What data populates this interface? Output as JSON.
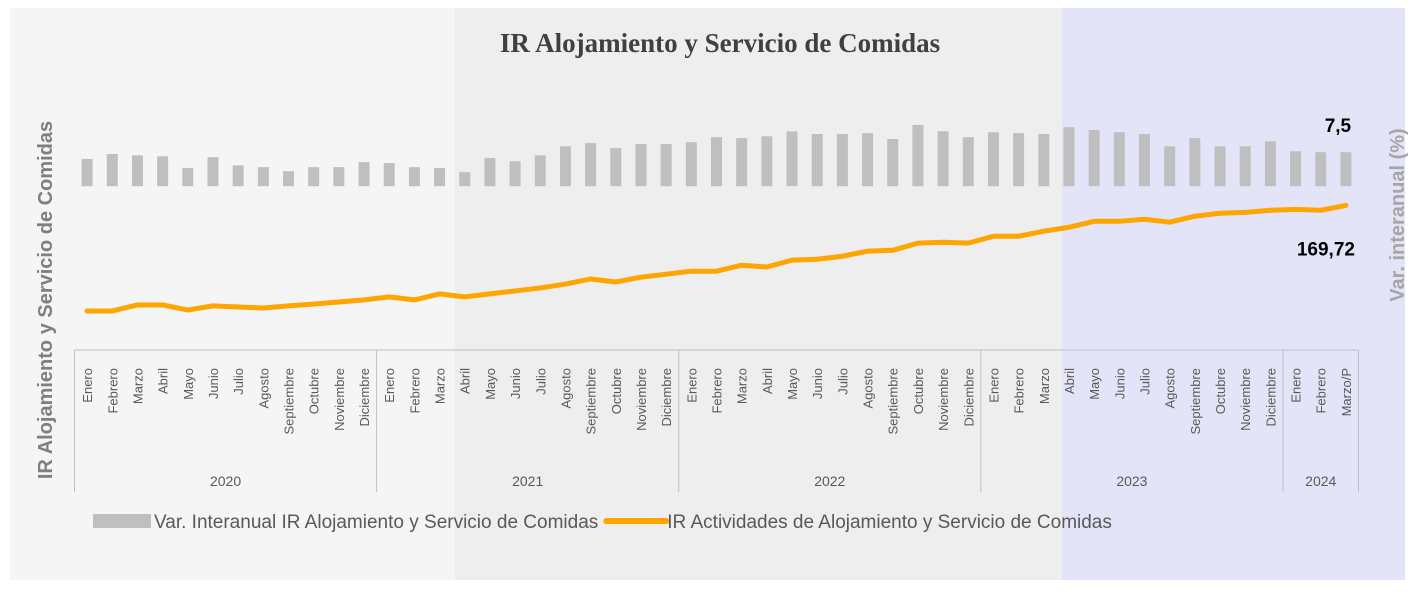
{
  "chart_data": {
    "type": "bar-line",
    "title": "IR Alojamiento y Servicio de Comidas",
    "y_label": "IR Alojamiento y Servicio de Comidas",
    "y2_label": "Var. interanual (%)",
    "groups": [
      {
        "name": "2020",
        "categories": [
          "Enero",
          "Febrero",
          "Marzo",
          "Abril",
          "Mayo",
          "Junio",
          "Julio",
          "Agosto",
          "Septiembre",
          "Octubre",
          "Noviembre",
          "Diciembre"
        ]
      },
      {
        "name": "2021",
        "categories": [
          "Enero",
          "Febrero",
          "Marzo",
          "Abril",
          "Mayo",
          "Junio",
          "Julio",
          "Agosto",
          "Septiembre",
          "Octubre",
          "Noviembre",
          "Diciembre"
        ]
      },
      {
        "name": "2022",
        "categories": [
          "Enero",
          "Febrero",
          "Marzo",
          "Abril",
          "Mayo",
          "Junio",
          "Julio",
          "Agosto",
          "Septiembre",
          "Octubre",
          "Noviembre",
          "Diciembre"
        ]
      },
      {
        "name": "2023",
        "categories": [
          "Enero",
          "Febrero",
          "Marzo",
          "Abril",
          "Mayo",
          "Junio",
          "Julio",
          "Agosto",
          "Septiembre",
          "Octubre",
          "Noviembre",
          "Diciembre"
        ]
      },
      {
        "name": "2024",
        "categories": [
          "Enero",
          "Febrero",
          "Marzo/P"
        ]
      }
    ],
    "series": [
      {
        "name": "Var. Interanual IR Alojamiento y Servicio de Comidas",
        "type": "bar",
        "axis": "y2",
        "color": "#bfbfbf",
        "values": [
          6.0,
          7.1,
          6.8,
          6.6,
          4.0,
          6.4,
          4.6,
          4.2,
          3.3,
          4.2,
          4.2,
          5.3,
          5.1,
          4.2,
          4.0,
          3.1,
          6.2,
          5.5,
          6.8,
          8.8,
          9.5,
          8.4,
          9.3,
          9.3,
          9.7,
          10.8,
          10.6,
          11.0,
          12.1,
          11.5,
          11.5,
          11.7,
          10.4,
          13.5,
          12.1,
          10.8,
          11.9,
          11.7,
          11.5,
          13.0,
          12.4,
          11.9,
          11.5,
          8.8,
          10.6,
          8.8,
          8.8,
          9.9,
          7.7,
          7.5,
          7.5
        ],
        "value_labels": [
          null,
          null,
          null,
          null,
          null,
          null,
          null,
          null,
          null,
          null,
          null,
          null,
          null,
          null,
          null,
          null,
          null,
          null,
          null,
          null,
          null,
          null,
          null,
          null,
          null,
          null,
          null,
          null,
          null,
          null,
          null,
          null,
          null,
          null,
          null,
          null,
          null,
          null,
          null,
          null,
          null,
          null,
          null,
          null,
          null,
          null,
          null,
          null,
          null,
          null,
          "7,5"
        ]
      },
      {
        "name": "IR Actividades de Alojamiento y Servicio de Comidas",
        "type": "line",
        "color": "#ffa500",
        "values": [
          134.4,
          134.4,
          136.4,
          136.4,
          134.7,
          136.1,
          135.7,
          135.4,
          136.1,
          136.7,
          137.4,
          138.1,
          139.1,
          138.1,
          140.1,
          139.1,
          140.1,
          141.1,
          142.1,
          143.4,
          145.1,
          144.1,
          145.7,
          146.7,
          147.7,
          147.7,
          149.7,
          149.1,
          151.4,
          151.7,
          152.7,
          154.4,
          154.7,
          157.1,
          157.4,
          157.1,
          159.4,
          159.4,
          161.1,
          162.4,
          164.4,
          164.4,
          165.1,
          164.1,
          166.1,
          167.1,
          167.4,
          168.1,
          168.4,
          168.1,
          169.72
        ],
        "value_labels": [
          null,
          null,
          null,
          null,
          null,
          null,
          null,
          null,
          null,
          null,
          null,
          null,
          null,
          null,
          null,
          null,
          null,
          null,
          null,
          null,
          null,
          null,
          null,
          null,
          null,
          null,
          null,
          null,
          null,
          null,
          null,
          null,
          null,
          null,
          null,
          null,
          null,
          null,
          null,
          null,
          null,
          null,
          null,
          null,
          null,
          null,
          null,
          null,
          null,
          null,
          "169,72"
        ]
      }
    ],
    "ylim": [
      123,
      205
    ],
    "y2lim": [
      -35,
      19
    ]
  }
}
